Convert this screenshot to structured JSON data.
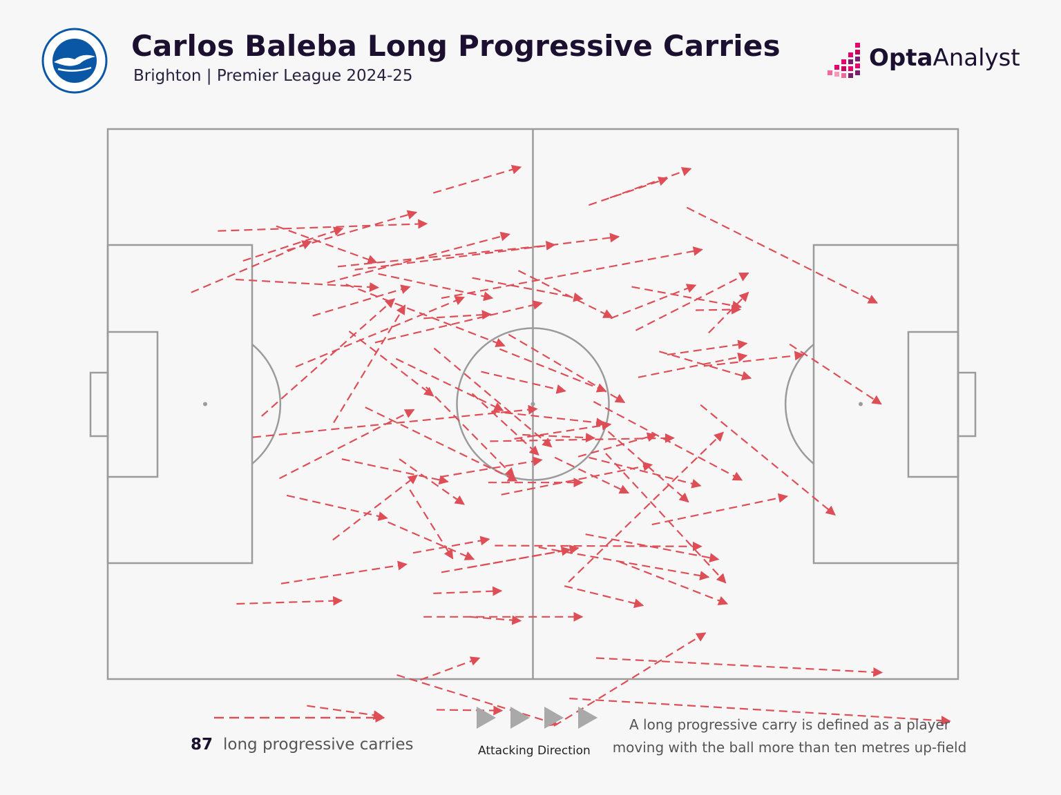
{
  "header": {
    "title": "Carlos Baleba Long Progressive Carries",
    "subtitle": "Brighton | Premier League 2024-25",
    "club_badge_lettering": "BRIGHTON & HOVE ALBION",
    "brand_bold": "Opta",
    "brand_light": "Analyst"
  },
  "legend": {
    "count": "87",
    "label": "long progressive carries",
    "direction_label": "Attacking Direction",
    "definition": "A long progressive carry is defined as a player moving with the ball more than ten metres up-field"
  },
  "colors": {
    "background": "#f7f7f7",
    "carry": "#de4e57",
    "pitch_lines": "#9b9b9b",
    "title": "#1c1030",
    "direction_arrows": "#a9a9a9",
    "badge_blue": "#0a57a6",
    "brand_pink": "#e5006d"
  },
  "icons": {
    "club_badge": "brighton-seagull-crest",
    "brand_logo": "opta-pixel-mark",
    "attacking_direction": "right-triangle-arrows"
  },
  "chart_data": {
    "type": "carry-map",
    "pitch_length_m": 105,
    "pitch_width_m": 68,
    "attacking_direction": "left-to-right",
    "carries_count": 87,
    "carries": [
      [
        10.3,
        20.2,
        25.1,
        13.9
      ],
      [
        22.1,
        15.0,
        38.1,
        10.3
      ],
      [
        16.7,
        16.3,
        29.0,
        12.3
      ],
      [
        13.6,
        12.6,
        39.4,
        11.7
      ],
      [
        20.8,
        12.0,
        33.2,
        16.5
      ],
      [
        40.2,
        7.9,
        51.0,
        4.7
      ],
      [
        59.4,
        9.4,
        69.1,
        6.1
      ],
      [
        62.0,
        8.5,
        72.0,
        4.9
      ],
      [
        71.5,
        9.7,
        95.0,
        21.5
      ],
      [
        15.8,
        18.6,
        33.4,
        19.6
      ],
      [
        28.4,
        17.0,
        55.2,
        14.3
      ],
      [
        27.1,
        19.0,
        49.6,
        13.0
      ],
      [
        30.5,
        17.4,
        63.1,
        13.3
      ],
      [
        25.3,
        23.1,
        37.3,
        19.5
      ],
      [
        41.2,
        20.9,
        73.4,
        14.9
      ],
      [
        45.0,
        18.4,
        58.6,
        21.0
      ],
      [
        33.4,
        17.9,
        47.5,
        20.9
      ],
      [
        29.4,
        19.2,
        49.0,
        26.8
      ],
      [
        39.0,
        23.4,
        47.3,
        22.9
      ],
      [
        23.2,
        29.4,
        44.0,
        20.8
      ],
      [
        19.0,
        35.5,
        35.4,
        21.0
      ],
      [
        27.9,
        36.3,
        36.7,
        21.8
      ],
      [
        29.8,
        25.0,
        40.2,
        33.0
      ],
      [
        50.7,
        17.5,
        62.3,
        23.3
      ],
      [
        64.7,
        19.5,
        78.2,
        22.0
      ],
      [
        62.1,
        23.4,
        72.6,
        19.3
      ],
      [
        65.2,
        24.9,
        79.1,
        17.8
      ],
      [
        72.6,
        22.4,
        78.1,
        22.3
      ],
      [
        74.2,
        25.2,
        79.1,
        20.2
      ],
      [
        69.1,
        27.9,
        78.9,
        26.5
      ],
      [
        65.5,
        30.7,
        78.9,
        28.0
      ],
      [
        48.4,
        27.2,
        61.5,
        32.4
      ],
      [
        35.6,
        28.4,
        48.8,
        34.8
      ],
      [
        40.3,
        27.1,
        54.8,
        39.3
      ],
      [
        49.5,
        25.4,
        63.8,
        33.8
      ],
      [
        33.0,
        26.4,
        53.6,
        21.5
      ],
      [
        21.2,
        43.2,
        37.8,
        34.7
      ],
      [
        17.9,
        38.1,
        53.0,
        34.6
      ],
      [
        28.9,
        40.8,
        42.0,
        43.6
      ],
      [
        31.8,
        34.4,
        50.5,
        43.5
      ],
      [
        36.0,
        40.8,
        44.0,
        46.4
      ],
      [
        39.3,
        31.9,
        50.2,
        43.0
      ],
      [
        45.0,
        32.7,
        53.2,
        40.3
      ],
      [
        47.4,
        34.9,
        61.4,
        36.4
      ],
      [
        51.2,
        37.8,
        60.1,
        38.2
      ],
      [
        55.2,
        40.6,
        64.3,
        45.0
      ],
      [
        58.1,
        40.5,
        67.7,
        37.8
      ],
      [
        50.2,
        38.3,
        62.1,
        36.5
      ],
      [
        47.0,
        43.7,
        58.6,
        43.7
      ],
      [
        41.1,
        43.0,
        53.6,
        40.9
      ],
      [
        48.6,
        45.2,
        67.2,
        41.5
      ],
      [
        47.2,
        38.6,
        69.9,
        38.2
      ],
      [
        46.1,
        30.0,
        56.5,
        32.4
      ],
      [
        60.0,
        33.7,
        78.3,
        43.4
      ],
      [
        61.8,
        37.4,
        71.7,
        46.1
      ],
      [
        59.4,
        40.6,
        73.2,
        44.1
      ],
      [
        68.1,
        27.5,
        79.4,
        30.8
      ],
      [
        73.2,
        34.1,
        89.8,
        47.7
      ],
      [
        73.6,
        29.3,
        85.9,
        27.9
      ],
      [
        27.8,
        50.8,
        38.2,
        42.8
      ],
      [
        22.1,
        45.3,
        34.5,
        48.1
      ],
      [
        37.3,
        44.6,
        42.6,
        53.1
      ],
      [
        34.6,
        48.6,
        45.2,
        53.2
      ],
      [
        37.7,
        52.4,
        47.1,
        50.7
      ],
      [
        47.8,
        51.5,
        73.3,
        51.6
      ],
      [
        53.2,
        51.7,
        74.2,
        55.4
      ],
      [
        59.0,
        50.1,
        75.4,
        53.2
      ],
      [
        67.2,
        48.9,
        83.9,
        45.4
      ],
      [
        61.5,
        40.1,
        76.3,
        56.1
      ],
      [
        84.2,
        26.6,
        95.5,
        34.0
      ],
      [
        56.4,
        56.5,
        66.1,
        58.9
      ],
      [
        24.6,
        71.3,
        33.9,
        72.6
      ],
      [
        40.6,
        71.8,
        48.7,
        71.9
      ],
      [
        15.9,
        58.7,
        28.9,
        58.3
      ],
      [
        21.4,
        56.2,
        36.9,
        53.8
      ],
      [
        41.2,
        54.8,
        57.1,
        52.0
      ],
      [
        35.7,
        67.5,
        55.5,
        73.6
      ],
      [
        38.6,
        68.1,
        45.9,
        65.4
      ],
      [
        55.1,
        73.8,
        73.8,
        62.3
      ],
      [
        60.3,
        65.4,
        95.6,
        67.2
      ],
      [
        57.0,
        70.4,
        104.0,
        73.2
      ],
      [
        63.2,
        53.5,
        76.5,
        58.7
      ],
      [
        44.6,
        54.2,
        58.1,
        51.8
      ],
      [
        40.2,
        57.4,
        48.6,
        57.1
      ],
      [
        56.9,
        56.0,
        76.0,
        37.5
      ],
      [
        44.7,
        60.3,
        51.0,
        60.8
      ],
      [
        39.0,
        60.3,
        58.6,
        60.3
      ]
    ]
  }
}
